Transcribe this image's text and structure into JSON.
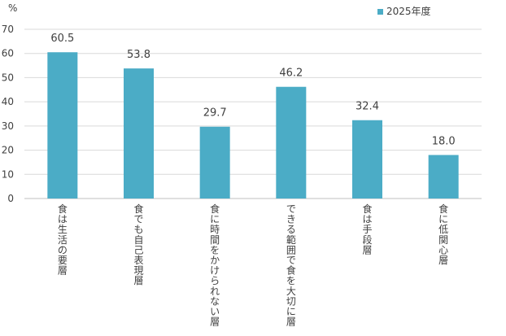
{
  "chart_data": {
    "type": "bar",
    "unit_label": "%",
    "categories": [
      "食は生活の要層",
      "食でも自己表現層",
      "食に時間をかけられない層",
      "できる範囲で食を大切に層",
      "食は手段層",
      "食に低関心層"
    ],
    "series": [
      {
        "name": "2025年度",
        "color": "#4BACC6",
        "values": [
          60.5,
          53.8,
          29.7,
          46.2,
          32.4,
          18.0
        ],
        "value_labels": [
          "60.5",
          "53.8",
          "29.7",
          "46.2",
          "32.4",
          "18.0"
        ]
      }
    ],
    "ylim": [
      0,
      70
    ],
    "yticks": [
      0,
      10,
      20,
      30,
      40,
      50,
      60,
      70
    ],
    "grid": true,
    "legend": "top-right",
    "title": "",
    "xlabel": "",
    "ylabel": ""
  }
}
